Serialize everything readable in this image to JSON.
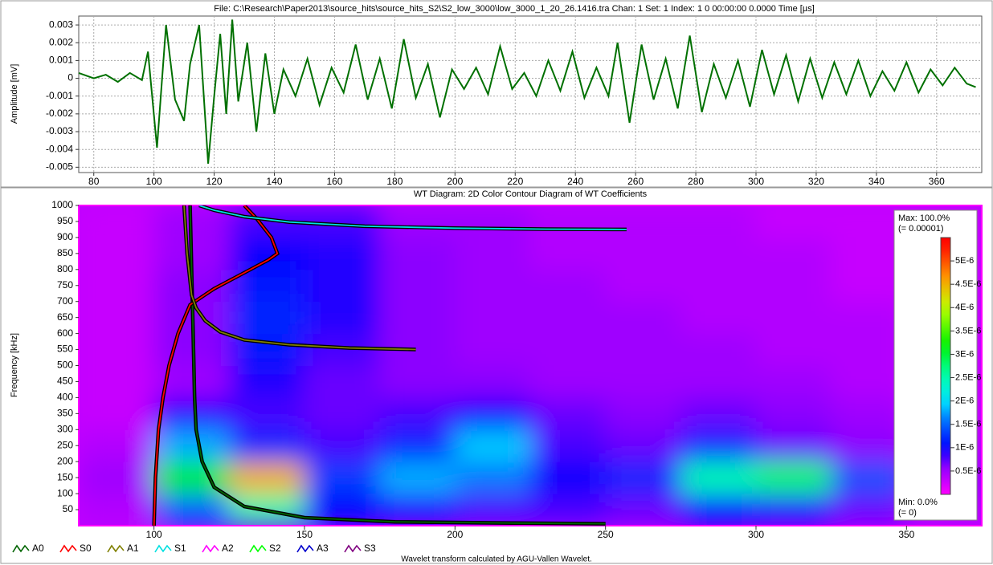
{
  "chart_data": [
    {
      "type": "line",
      "title": "File: C:\\Research\\Paper2013\\source_hits\\source_hits_S2\\S2_low_3000\\low_3000_1_20_26.1416.tra  Chan: 1  Set: 1  Index: 1  0  00:00:00  0.0000  Time [µs]",
      "y_label": "Amplitude [mV]",
      "x": [
        75,
        80,
        84,
        88,
        92,
        96,
        98,
        101,
        104,
        107,
        110,
        112,
        115,
        118,
        120,
        122,
        124,
        126,
        128,
        131,
        134,
        137,
        140,
        143,
        147,
        151,
        155,
        159,
        163,
        167,
        171,
        175,
        179,
        183,
        187,
        191,
        195,
        199,
        203,
        207,
        211,
        215,
        219,
        223,
        227,
        231,
        235,
        239,
        243,
        247,
        251,
        254,
        258,
        262,
        266,
        270,
        274,
        278,
        282,
        286,
        290,
        294,
        298,
        302,
        306,
        310,
        314,
        318,
        322,
        326,
        330,
        334,
        338,
        342,
        346,
        350,
        354,
        358,
        362,
        366,
        370,
        373
      ],
      "series": [
        {
          "color": "#007000",
          "values": [
            0.0003,
            0,
            0.0002,
            -0.0002,
            0.0003,
            -0.0001,
            0.0015,
            -0.0039,
            0.003,
            -0.0012,
            -0.0024,
            0.0008,
            0.003,
            -0.0048,
            -0.001,
            0.0025,
            -0.002,
            0.0033,
            -0.0013,
            0.002,
            -0.003,
            0.0014,
            -0.002,
            0.0005,
            -0.001,
            0.0011,
            -0.0015,
            0.0006,
            -0.0008,
            0.0019,
            -0.0012,
            0.0011,
            -0.0017,
            0.0022,
            -0.0011,
            0.0008,
            -0.0022,
            0.0005,
            -0.0006,
            0.0006,
            -0.0009,
            0.0018,
            -0.0006,
            0.0003,
            -0.001,
            0.001,
            -0.0007,
            0.0015,
            -0.0011,
            0.0006,
            -0.001,
            0.002,
            -0.0025,
            0.0019,
            -0.0012,
            0.0011,
            -0.0017,
            0.0024,
            -0.0019,
            0.0008,
            -0.0011,
            0.001,
            -0.0016,
            0.0016,
            -0.0009,
            0.0013,
            -0.0013,
            0.0011,
            -0.0011,
            0.0009,
            -0.0009,
            0.001,
            -0.001,
            0.0004,
            -0.0007,
            0.0009,
            -0.0008,
            0.0005,
            -0.0004,
            0.0006,
            -0.0003,
            -0.0005
          ]
        }
      ],
      "xlim": [
        75,
        375
      ],
      "xticks": [
        80,
        100,
        120,
        140,
        160,
        180,
        200,
        220,
        240,
        260,
        280,
        300,
        320,
        340,
        360
      ],
      "ylim": [
        -0.0053,
        0.0035
      ],
      "yticks": [
        0.003,
        0.002,
        0.001,
        0,
        -0.001,
        -0.002,
        -0.003,
        -0.004,
        -0.005
      ],
      "grid": true
    },
    {
      "type": "contour",
      "title": "WT Diagram: 2D Color Contour Diagram of WT Coefficients",
      "y_label": "Frequency [kHz]",
      "xbins": [
        75,
        100,
        125,
        150,
        175,
        200,
        225,
        250,
        275,
        300,
        325,
        350,
        375
      ],
      "ybins": [
        0,
        100,
        200,
        300,
        400,
        500,
        600,
        700,
        800,
        900,
        1000
      ],
      "z": [
        [
          4e-07,
          1.5e-06,
          2.5e-06,
          1e-06,
          9e-07,
          8e-07,
          8e-07,
          7e-07,
          1e-06,
          9e-07,
          7e-07,
          4e-07
        ],
        [
          5e-07,
          3.2e-06,
          4.5e-06,
          1.3e-06,
          1.8e-06,
          1.6e-06,
          1e-06,
          1.2e-06,
          2.5e-06,
          2.8e-06,
          1.4e-06,
          6e-07
        ],
        [
          4e-07,
          1.8e-06,
          1.2e-06,
          8e-07,
          1.2e-06,
          1.9e-06,
          8e-07,
          7e-07,
          1.2e-06,
          7e-07,
          6e-07,
          4e-07
        ],
        [
          3e-07,
          9e-07,
          8e-07,
          7e-07,
          8e-07,
          1e-06,
          7e-07,
          6e-07,
          7e-07,
          6e-07,
          5e-07,
          3e-07
        ],
        [
          3e-07,
          5e-07,
          9e-07,
          7e-07,
          6e-07,
          6e-07,
          5e-07,
          5e-07,
          5e-07,
          5e-07,
          4e-07,
          3e-07
        ],
        [
          3e-07,
          6e-07,
          1.1e-06,
          8e-07,
          6e-07,
          5e-07,
          5e-07,
          5e-07,
          5e-07,
          4e-07,
          4e-07,
          3e-07
        ],
        [
          3e-07,
          6e-07,
          1.2e-06,
          9e-07,
          6e-07,
          5e-07,
          5e-07,
          5e-07,
          4e-07,
          4e-07,
          4e-07,
          3e-07
        ],
        [
          3e-07,
          6e-07,
          1.1e-06,
          9e-07,
          6e-07,
          5e-07,
          5e-07,
          4e-07,
          4e-07,
          4e-07,
          3e-07,
          3e-07
        ],
        [
          3e-07,
          5e-07,
          1e-06,
          9e-07,
          6e-07,
          5e-07,
          4e-07,
          4e-07,
          4e-07,
          4e-07,
          3e-07,
          3e-07
        ],
        [
          3e-07,
          5e-07,
          8e-07,
          8e-07,
          5e-07,
          5e-07,
          4e-07,
          4e-07,
          4e-07,
          3e-07,
          3e-07,
          3e-07
        ]
      ],
      "curves": [
        {
          "name": "A0",
          "color": "#006400",
          "x": [
            112,
            112.5,
            113,
            113.5,
            114,
            116,
            120,
            130,
            150,
            180,
            220,
            250
          ],
          "y": [
            1000,
            800,
            600,
            400,
            300,
            200,
            120,
            60,
            25,
            12,
            8,
            6
          ]
        },
        {
          "name": "S0",
          "color": "#ff0000",
          "x": [
            100,
            100.5,
            101.5,
            103,
            105,
            108,
            112,
            120,
            130,
            138,
            141,
            139,
            134,
            130
          ],
          "y": [
            0,
            150,
            300,
            400,
            500,
            600,
            690,
            740,
            790,
            830,
            850,
            900,
            960,
            1000
          ]
        },
        {
          "name": "A1",
          "color": "#808000",
          "x": [
            110,
            111,
            112.5,
            114,
            117,
            122,
            130,
            145,
            165,
            187
          ],
          "y": [
            1000,
            850,
            720,
            680,
            640,
            605,
            580,
            565,
            555,
            550
          ]
        },
        {
          "name": "S1",
          "color": "#00e0e0",
          "x": [
            115,
            120,
            130,
            145,
            170,
            200,
            230,
            257
          ],
          "y": [
            1000,
            985,
            965,
            948,
            935,
            929,
            926,
            925
          ]
        },
        {
          "name": "A2",
          "color": "#ff00ff",
          "x": [],
          "y": []
        },
        {
          "name": "S2",
          "color": "#00ff00",
          "x": [],
          "y": []
        },
        {
          "name": "A3",
          "color": "#0000cc",
          "x": [],
          "y": []
        },
        {
          "name": "S3",
          "color": "#800080",
          "x": [],
          "y": []
        }
      ],
      "xlim": [
        75,
        375
      ],
      "xticks": [
        100,
        150,
        200,
        250,
        300,
        350
      ],
      "ylim": [
        0,
        1000
      ],
      "yticks": [
        50,
        100,
        150,
        200,
        250,
        300,
        350,
        400,
        450,
        500,
        550,
        600,
        650,
        700,
        750,
        800,
        850,
        900,
        950,
        1000
      ],
      "clim": [
        0,
        5.5e-06
      ],
      "cticks": [
        {
          "value": 5e-06,
          "label": "5E-6"
        },
        {
          "value": 4.5e-06,
          "label": "4.5E-6"
        },
        {
          "value": 4e-06,
          "label": "4E-6"
        },
        {
          "value": 3.5e-06,
          "label": "3.5E-6"
        },
        {
          "value": 3e-06,
          "label": "3E-6"
        },
        {
          "value": 2.5e-06,
          "label": "2.5E-6"
        },
        {
          "value": 2e-06,
          "label": "2E-6"
        },
        {
          "value": 1.5e-06,
          "label": "1.5E-6"
        },
        {
          "value": 1e-06,
          "label": "1E-6"
        },
        {
          "value": 5e-07,
          "label": "0.5E-6"
        }
      ],
      "max_label": "Max: 100.0%",
      "max_value_label": "(= 0.00001)",
      "min_label": "Min: 0.0%",
      "min_value_label": "(= 0)"
    }
  ],
  "footer": "Wavelet transform calculated by AGU-Vallen Wavelet."
}
